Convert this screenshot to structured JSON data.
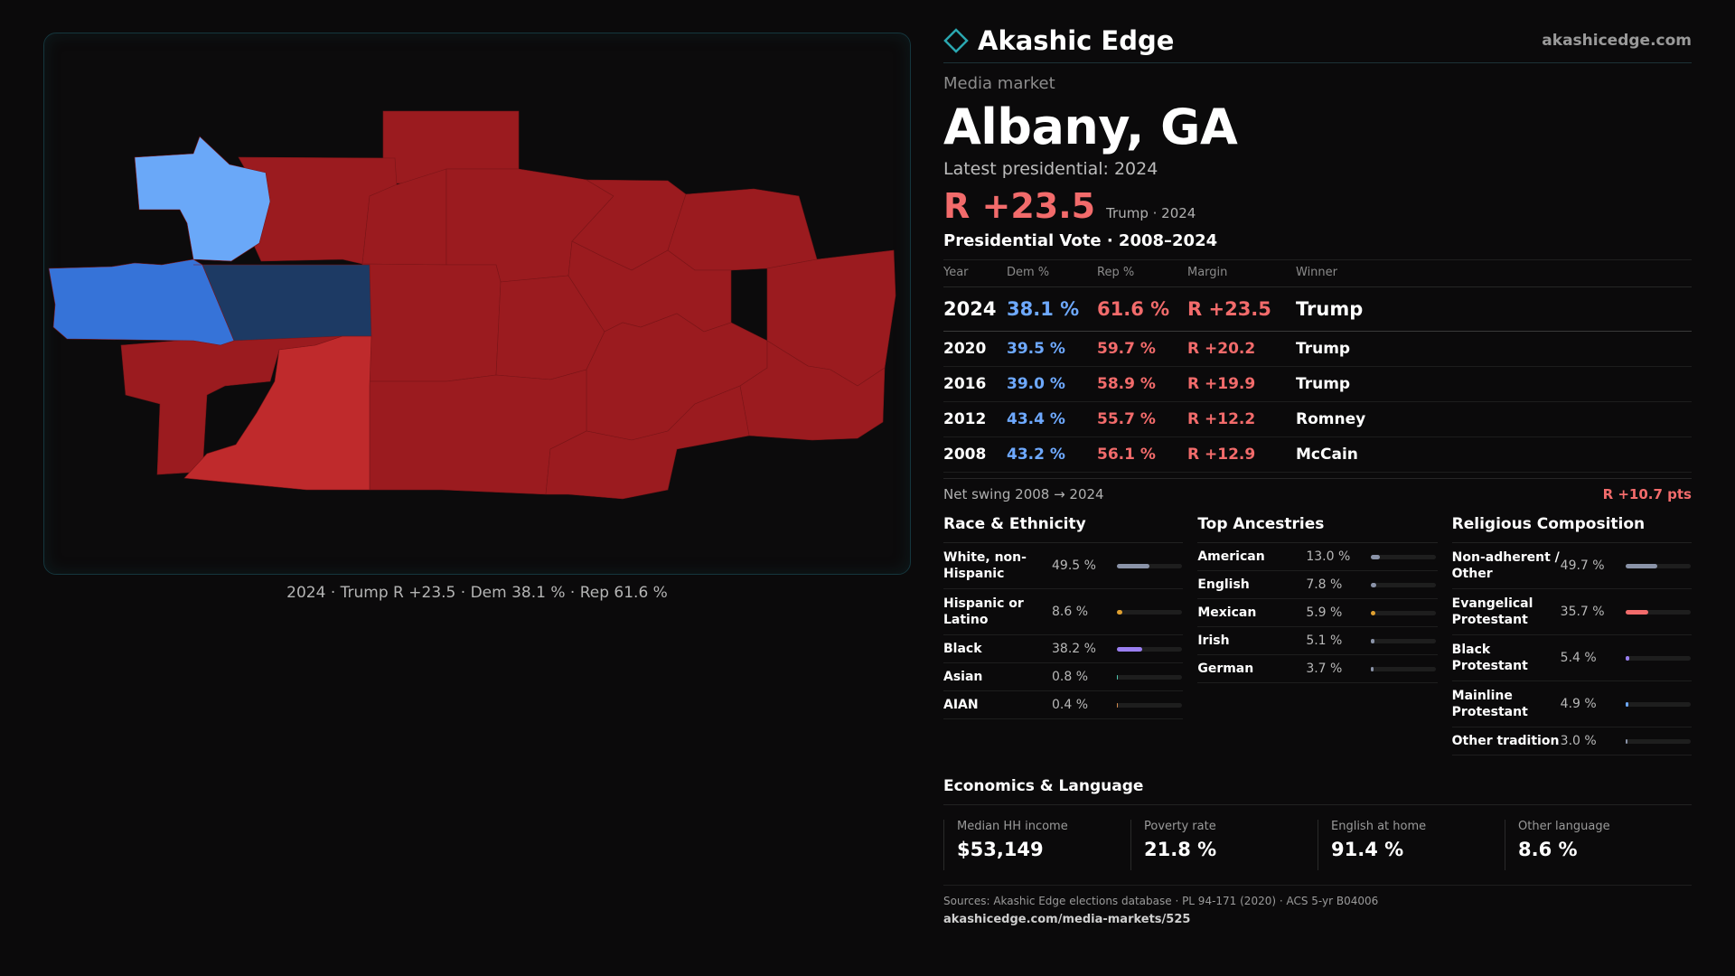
{
  "map": {
    "caption": "2024 · Trump R +23.5 · Dem 38.1 % · Rep 61.6 %",
    "colors": {
      "solid_rep": "#9b1b1f",
      "lean_rep": "#bf2a2c",
      "light_dem": "#6aa8f8",
      "mid_dem": "#3673d8",
      "dark_dem": "#1d3a64"
    }
  },
  "header": {
    "brand": "Akashic Edge",
    "site": "akashicedge.com",
    "kicker": "Media market",
    "market": "Albany, GA",
    "latest": "Latest presidential: 2024",
    "margin": "R +23.5",
    "margin_sub": "Trump · 2024"
  },
  "votes": {
    "title": "Presidential Vote · 2008–2024",
    "headers": [
      "Year",
      "Dem %",
      "Rep %",
      "Margin",
      "Winner"
    ],
    "rows": [
      {
        "year": "2024",
        "dem": "38.1 %",
        "rep": "61.6 %",
        "margin": "R +23.5",
        "winner": "Trump"
      },
      {
        "year": "2020",
        "dem": "39.5 %",
        "rep": "59.7 %",
        "margin": "R +20.2",
        "winner": "Trump"
      },
      {
        "year": "2016",
        "dem": "39.0 %",
        "rep": "58.9 %",
        "margin": "R +19.9",
        "winner": "Trump"
      },
      {
        "year": "2012",
        "dem": "43.4 %",
        "rep": "55.7 %",
        "margin": "R +12.2",
        "winner": "Romney"
      },
      {
        "year": "2008",
        "dem": "43.2 %",
        "rep": "56.1 %",
        "margin": "R +12.9",
        "winner": "McCain"
      }
    ],
    "swing_label": "Net swing 2008 → 2024",
    "swing_value": "R +10.7 pts"
  },
  "race": {
    "title": "Race & Ethnicity",
    "items": [
      {
        "label": "White, non-Hispanic",
        "value": "49.5 %",
        "pct": 49.5,
        "color": "#8a93a8"
      },
      {
        "label": "Hispanic or Latino",
        "value": "8.6 %",
        "pct": 8.6,
        "color": "#e0a030"
      },
      {
        "label": "Black",
        "value": "38.2 %",
        "pct": 38.2,
        "color": "#9a7ff0"
      },
      {
        "label": "Asian",
        "value": "0.8 %",
        "pct": 0.8,
        "color": "#4fc6b0"
      },
      {
        "label": "AIAN",
        "value": "0.4 %",
        "pct": 0.4,
        "color": "#d08a50"
      }
    ]
  },
  "ancestry": {
    "title": "Top Ancestries",
    "items": [
      {
        "label": "American",
        "value": "13.0 %",
        "pct": 13.0,
        "color": "#8a93a8"
      },
      {
        "label": "English",
        "value": "7.8 %",
        "pct": 7.8,
        "color": "#8a93a8"
      },
      {
        "label": "Mexican",
        "value": "5.9 %",
        "pct": 5.9,
        "color": "#e0a030"
      },
      {
        "label": "Irish",
        "value": "5.1 %",
        "pct": 5.1,
        "color": "#8a93a8"
      },
      {
        "label": "German",
        "value": "3.7 %",
        "pct": 3.7,
        "color": "#8a93a8"
      }
    ]
  },
  "religion": {
    "title": "Religious Composition",
    "items": [
      {
        "label": "Non-adherent / Other",
        "value": "49.7 %",
        "pct": 49.7,
        "color": "#8a93a8"
      },
      {
        "label": "Evangelical Protestant",
        "value": "35.7 %",
        "pct": 35.7,
        "color": "#f26b6b"
      },
      {
        "label": "Black Protestant",
        "value": "5.4 %",
        "pct": 5.4,
        "color": "#9a7ff0"
      },
      {
        "label": "Mainline Protestant",
        "value": "4.9 %",
        "pct": 4.9,
        "color": "#6ea9ff"
      },
      {
        "label": "Other tradition",
        "value": "3.0 %",
        "pct": 3.0,
        "color": "#8a93a8"
      }
    ]
  },
  "economics": {
    "title": "Economics & Language",
    "cells": [
      {
        "label": "Median HH income",
        "value": "$53,149"
      },
      {
        "label": "Poverty rate",
        "value": "21.8 %"
      },
      {
        "label": "English at home",
        "value": "91.4 %"
      },
      {
        "label": "Other language",
        "value": "8.6 %"
      }
    ]
  },
  "sources": {
    "text": "Sources: Akashic Edge elections database · PL 94-171 (2020) · ACS 5-yr B04006",
    "url": "akashicedge.com/media-markets/525"
  }
}
